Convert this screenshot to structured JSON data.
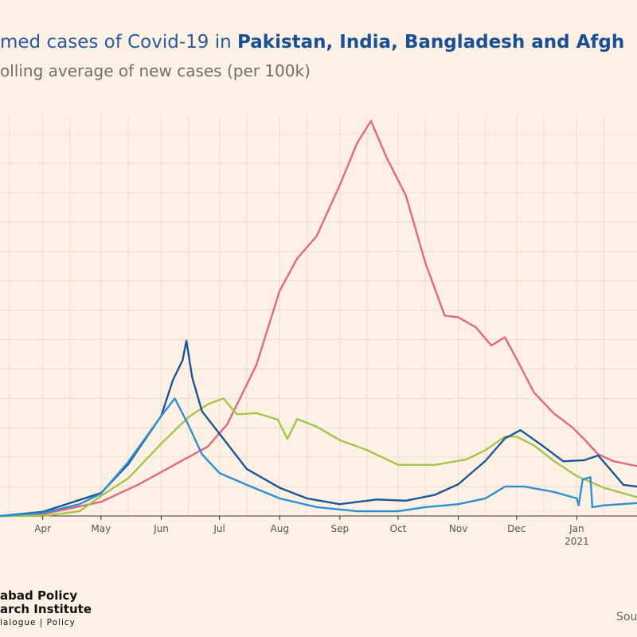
{
  "title_parts": {
    "prefix": "med cases of Covid-19 in ",
    "countries": "Pakistan, India, Bangladesh and Afgh"
  },
  "subtitle": "olling average of new cases (per 100k)",
  "logo": {
    "line1": "abad Policy",
    "line2": "arch Institute",
    "line3": "ialogue | Policy"
  },
  "source": "Sou",
  "colors": {
    "background": "#fdf1e5",
    "grid": "#ecdccd",
    "india": "#e5687f",
    "pakistan": "#1b5797",
    "bangladesh": "#a4c548",
    "afghanistan": "#2f8fd1"
  },
  "chart_data": {
    "type": "line",
    "title": "med cases of Covid-19 in Pakistan, India, Bangladesh and Afgh",
    "subtitle": "olling average of new cases (per 100k)",
    "x_tick_labels": [
      "Apr",
      "May",
      "Jun",
      "Jul",
      "Aug",
      "Sep",
      "Oct",
      "Nov",
      "Dec",
      "Jan",
      "2021"
    ],
    "x_ticks": [
      "2020-04-01",
      "2020-05-01",
      "2020-06-01",
      "2020-07-01",
      "2020-08-01",
      "2020-09-01",
      "2020-10-01",
      "2020-11-01",
      "2020-12-01",
      "2021-01-01"
    ],
    "x_range": [
      "2020-03-10",
      "2021-02-01"
    ],
    "y_range": [
      0,
      6.8
    ],
    "grid": true,
    "legend": "none",
    "series": [
      {
        "color_key": "india",
        "points": [
          [
            "2020-03-10",
            0.0
          ],
          [
            "2020-04-01",
            0.03
          ],
          [
            "2020-05-01",
            0.24
          ],
          [
            "2020-05-20",
            0.53
          ],
          [
            "2020-06-10",
            0.91
          ],
          [
            "2020-06-25",
            1.18
          ],
          [
            "2020-07-05",
            1.56
          ],
          [
            "2020-07-20",
            2.57
          ],
          [
            "2020-08-01",
            3.83
          ],
          [
            "2020-08-10",
            4.38
          ],
          [
            "2020-08-20",
            4.76
          ],
          [
            "2020-09-01",
            5.63
          ],
          [
            "2020-09-10",
            6.35
          ],
          [
            "2020-09-17",
            6.72
          ],
          [
            "2020-09-25",
            6.1
          ],
          [
            "2020-10-05",
            5.45
          ],
          [
            "2020-10-15",
            4.31
          ],
          [
            "2020-10-25",
            3.41
          ],
          [
            "2020-11-01",
            3.38
          ],
          [
            "2020-11-10",
            3.21
          ],
          [
            "2020-11-18",
            2.9
          ],
          [
            "2020-11-25",
            3.04
          ],
          [
            "2020-12-01",
            2.67
          ],
          [
            "2020-12-10",
            2.1
          ],
          [
            "2020-12-20",
            1.75
          ],
          [
            "2020-12-30",
            1.5
          ],
          [
            "2021-01-05",
            1.3
          ],
          [
            "2021-01-12",
            1.05
          ],
          [
            "2021-01-20",
            0.93
          ],
          [
            "2021-02-01",
            0.85
          ]
        ]
      },
      {
        "color_key": "bangladesh",
        "points": [
          [
            "2020-03-10",
            0.0
          ],
          [
            "2020-04-01",
            0.0
          ],
          [
            "2020-04-20",
            0.08
          ],
          [
            "2020-05-01",
            0.34
          ],
          [
            "2020-05-15",
            0.64
          ],
          [
            "2020-06-01",
            1.23
          ],
          [
            "2020-06-15",
            1.68
          ],
          [
            "2020-06-25",
            1.9
          ],
          [
            "2020-07-03",
            2.0
          ],
          [
            "2020-07-10",
            1.73
          ],
          [
            "2020-07-20",
            1.75
          ],
          [
            "2020-07-31",
            1.64
          ],
          [
            "2020-08-05",
            1.31
          ],
          [
            "2020-08-10",
            1.65
          ],
          [
            "2020-08-20",
            1.52
          ],
          [
            "2020-09-01",
            1.29
          ],
          [
            "2020-09-15",
            1.12
          ],
          [
            "2020-10-01",
            0.87
          ],
          [
            "2020-10-20",
            0.87
          ],
          [
            "2020-11-05",
            0.96
          ],
          [
            "2020-11-15",
            1.12
          ],
          [
            "2020-11-25",
            1.35
          ],
          [
            "2020-12-01",
            1.35
          ],
          [
            "2020-12-10",
            1.2
          ],
          [
            "2020-12-20",
            0.94
          ],
          [
            "2021-01-01",
            0.68
          ],
          [
            "2021-01-15",
            0.48
          ],
          [
            "2021-02-01",
            0.32
          ]
        ]
      },
      {
        "color_key": "pakistan",
        "points": [
          [
            "2020-03-10",
            0.0
          ],
          [
            "2020-04-01",
            0.07
          ],
          [
            "2020-05-01",
            0.39
          ],
          [
            "2020-05-15",
            0.88
          ],
          [
            "2020-06-01",
            1.7
          ],
          [
            "2020-06-07",
            2.31
          ],
          [
            "2020-06-12",
            2.65
          ],
          [
            "2020-06-14",
            2.98
          ],
          [
            "2020-06-17",
            2.35
          ],
          [
            "2020-06-22",
            1.78
          ],
          [
            "2020-07-01",
            1.4
          ],
          [
            "2020-07-15",
            0.8
          ],
          [
            "2020-08-01",
            0.48
          ],
          [
            "2020-08-15",
            0.3
          ],
          [
            "2020-09-01",
            0.2
          ],
          [
            "2020-09-20",
            0.28
          ],
          [
            "2020-10-05",
            0.26
          ],
          [
            "2020-10-20",
            0.36
          ],
          [
            "2020-11-01",
            0.54
          ],
          [
            "2020-11-15",
            0.94
          ],
          [
            "2020-11-25",
            1.32
          ],
          [
            "2020-12-03",
            1.46
          ],
          [
            "2020-12-15",
            1.18
          ],
          [
            "2020-12-25",
            0.93
          ],
          [
            "2021-01-05",
            0.95
          ],
          [
            "2021-01-12",
            1.03
          ],
          [
            "2021-01-18",
            0.8
          ],
          [
            "2021-01-25",
            0.53
          ],
          [
            "2021-02-01",
            0.5
          ]
        ]
      },
      {
        "color_key": "afghanistan",
        "points": [
          [
            "2020-03-10",
            0.0
          ],
          [
            "2020-04-01",
            0.05
          ],
          [
            "2020-04-20",
            0.2
          ],
          [
            "2020-05-01",
            0.38
          ],
          [
            "2020-05-15",
            0.92
          ],
          [
            "2020-06-01",
            1.7
          ],
          [
            "2020-06-08",
            2.0
          ],
          [
            "2020-06-15",
            1.55
          ],
          [
            "2020-06-22",
            1.05
          ],
          [
            "2020-07-01",
            0.73
          ],
          [
            "2020-07-15",
            0.53
          ],
          [
            "2020-08-01",
            0.3
          ],
          [
            "2020-08-20",
            0.15
          ],
          [
            "2020-09-10",
            0.08
          ],
          [
            "2020-10-01",
            0.08
          ],
          [
            "2020-10-15",
            0.15
          ],
          [
            "2020-11-01",
            0.2
          ],
          [
            "2020-11-15",
            0.3
          ],
          [
            "2020-11-25",
            0.5
          ],
          [
            "2020-12-05",
            0.5
          ],
          [
            "2020-12-20",
            0.41
          ],
          [
            "2021-01-01",
            0.3
          ],
          [
            "2021-01-02",
            0.18
          ],
          [
            "2021-01-04",
            0.62
          ],
          [
            "2021-01-08",
            0.66
          ],
          [
            "2021-01-09",
            0.15
          ],
          [
            "2021-01-15",
            0.18
          ],
          [
            "2021-02-01",
            0.22
          ]
        ]
      }
    ]
  }
}
